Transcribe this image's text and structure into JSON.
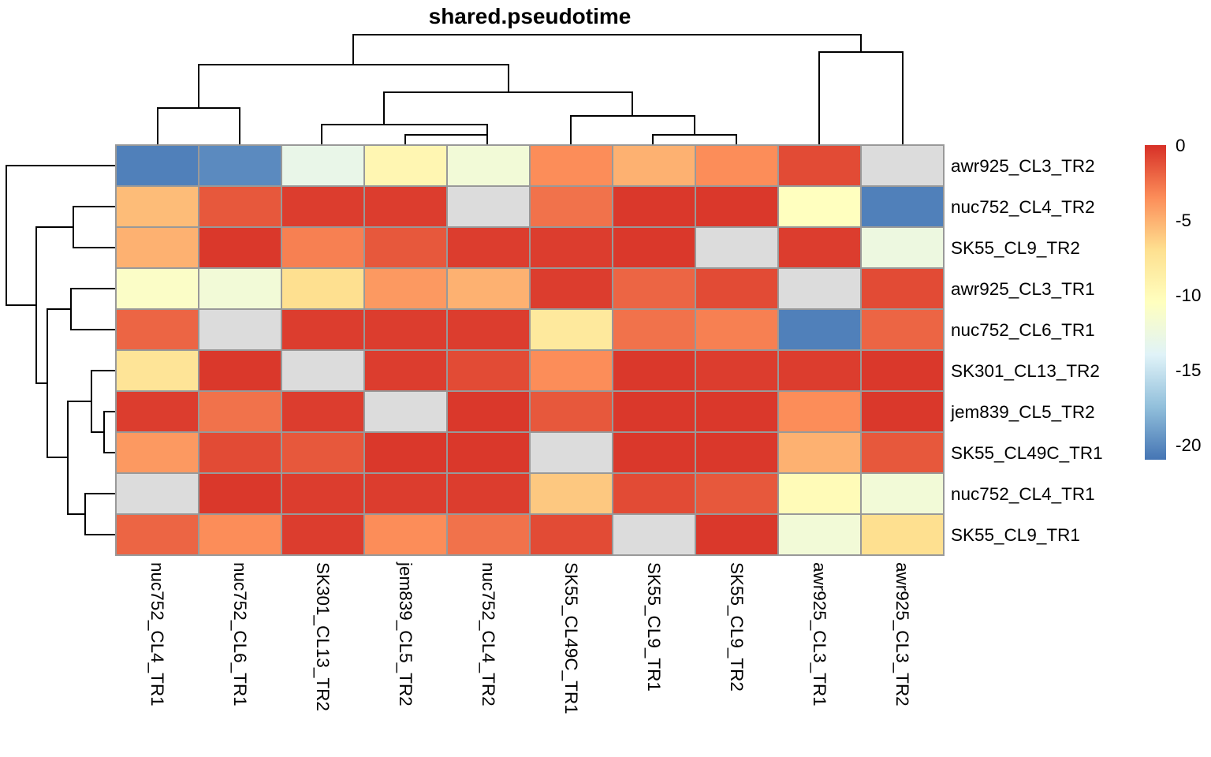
{
  "chart_data": {
    "type": "heatmap",
    "title": "shared.pseudotime",
    "columns": [
      "nuc752_CL4_TR1",
      "nuc752_CL6_TR1",
      "SK301_CL13_TR2",
      "jem839_CL5_TR2",
      "nuc752_CL4_TR2",
      "SK55_CL49C_TR1",
      "SK55_CL9_TR1",
      "SK55_CL9_TR2",
      "awr925_CL3_TR1",
      "awr925_CL3_TR2"
    ],
    "rows": [
      "awr925_CL3_TR2",
      "nuc752_CL4_TR2",
      "SK55_CL9_TR2",
      "awr925_CL3_TR1",
      "nuc752_CL6_TR1",
      "SK301_CL13_TR2",
      "jem839_CL5_TR2",
      "SK55_CL49C_TR1",
      "nuc752_CL4_TR1",
      "SK55_CL9_TR1"
    ],
    "values": [
      [
        -20.5,
        -20,
        -13,
        -9.5,
        -12,
        -3.5,
        -5,
        -3.5,
        -1,
        null
      ],
      [
        -5.5,
        -1.5,
        -0.5,
        -0.5,
        null,
        -2.5,
        -0.3,
        -0.3,
        -10.5,
        -20.5
      ],
      [
        -5,
        -0.3,
        -3,
        -1.5,
        -0.5,
        -0.5,
        -0.3,
        null,
        -0.5,
        -12.5
      ],
      [
        -11,
        -12,
        -7,
        -4,
        -5,
        -0.5,
        -2,
        -1,
        null,
        -1
      ],
      [
        -2,
        null,
        -0.5,
        -0.5,
        -0.5,
        -8,
        -2.5,
        -3,
        -20.5,
        -2
      ],
      [
        -7.5,
        -0.3,
        null,
        -0.5,
        -1,
        -3.5,
        -0.3,
        -0.5,
        -0.5,
        -0.3
      ],
      [
        -0.5,
        -2.5,
        -0.5,
        null,
        -0.3,
        -1.5,
        -0.3,
        -0.3,
        -3.5,
        -0.3
      ],
      [
        -4,
        -1,
        -1.5,
        -0.3,
        -0.3,
        null,
        -0.3,
        -0.3,
        -5,
        -1.5
      ],
      [
        null,
        -0.3,
        -0.5,
        -0.5,
        -0.5,
        -6,
        -1,
        -1.5,
        -10,
        -12
      ],
      [
        -2,
        -3.5,
        -0.5,
        -3.5,
        -2.5,
        -1,
        null,
        -0.3,
        -12,
        -7
      ]
    ],
    "missing_color": "#DCDCDC",
    "color_scale": {
      "domain": [
        -21,
        0
      ],
      "colors": [
        "#4575B4",
        "#91BFDB",
        "#E0F3F8",
        "#FFFFBF",
        "#FEE090",
        "#FC8D59",
        "#D73027"
      ],
      "stops": [
        -21,
        -17.5,
        -14,
        -10.5,
        -7,
        -3.5,
        0
      ]
    },
    "legend": {
      "position": "right",
      "ticks": [
        0,
        -5,
        -10,
        -15,
        -20
      ],
      "tick_labels": [
        "0",
        "-5",
        "-10",
        "-15",
        "-20"
      ]
    },
    "column_dendrogram": true,
    "row_dendrogram": true,
    "xlabel": "",
    "ylabel": ""
  }
}
